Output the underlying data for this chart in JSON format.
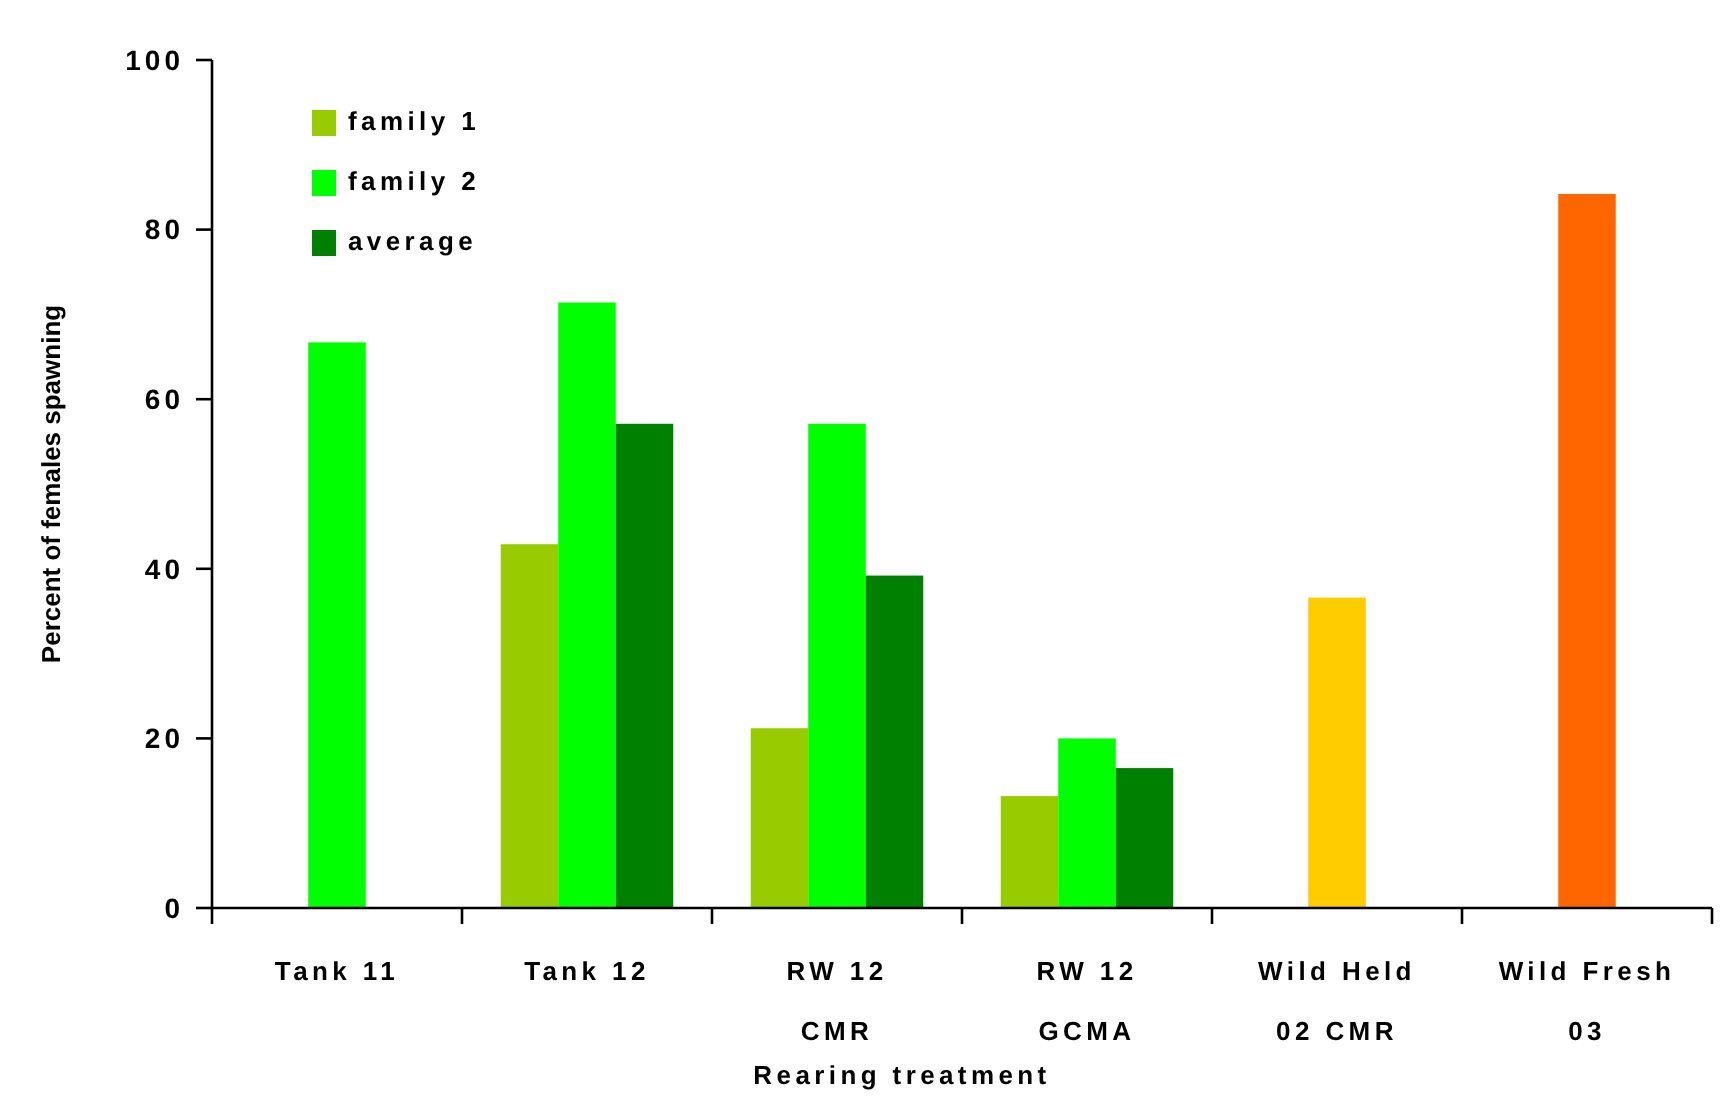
{
  "chart_data": {
    "type": "bar",
    "xlabel": "Rearing treatment",
    "ylabel": "Percent of females spawning",
    "categories": [
      "Tank 11",
      "Tank 12",
      "RW 12\nCMR",
      "RW 12\nGCMA",
      "Wild Held\n02 CMR",
      "Wild Fresh\n03"
    ],
    "series": [
      {
        "name": "family 1",
        "color": "#99cc00",
        "values": [
          null,
          42.9,
          21.2,
          13.2,
          null,
          null
        ]
      },
      {
        "name": "family 2",
        "color": "#00ff00",
        "colors": [
          "#00ff00",
          "#00ff00",
          "#00ff00",
          "#00ff00",
          "#ffcc00",
          "#ff6600"
        ],
        "values": [
          66.7,
          71.4,
          57.1,
          20.0,
          36.6,
          84.2
        ]
      },
      {
        "name": "average",
        "color": "#008000",
        "values": [
          null,
          57.1,
          39.2,
          16.5,
          null,
          null
        ]
      }
    ],
    "ylim": [
      0,
      100
    ],
    "yticks": [
      0,
      20,
      40,
      60,
      80,
      100
    ],
    "grid": false,
    "legend": "top left"
  }
}
